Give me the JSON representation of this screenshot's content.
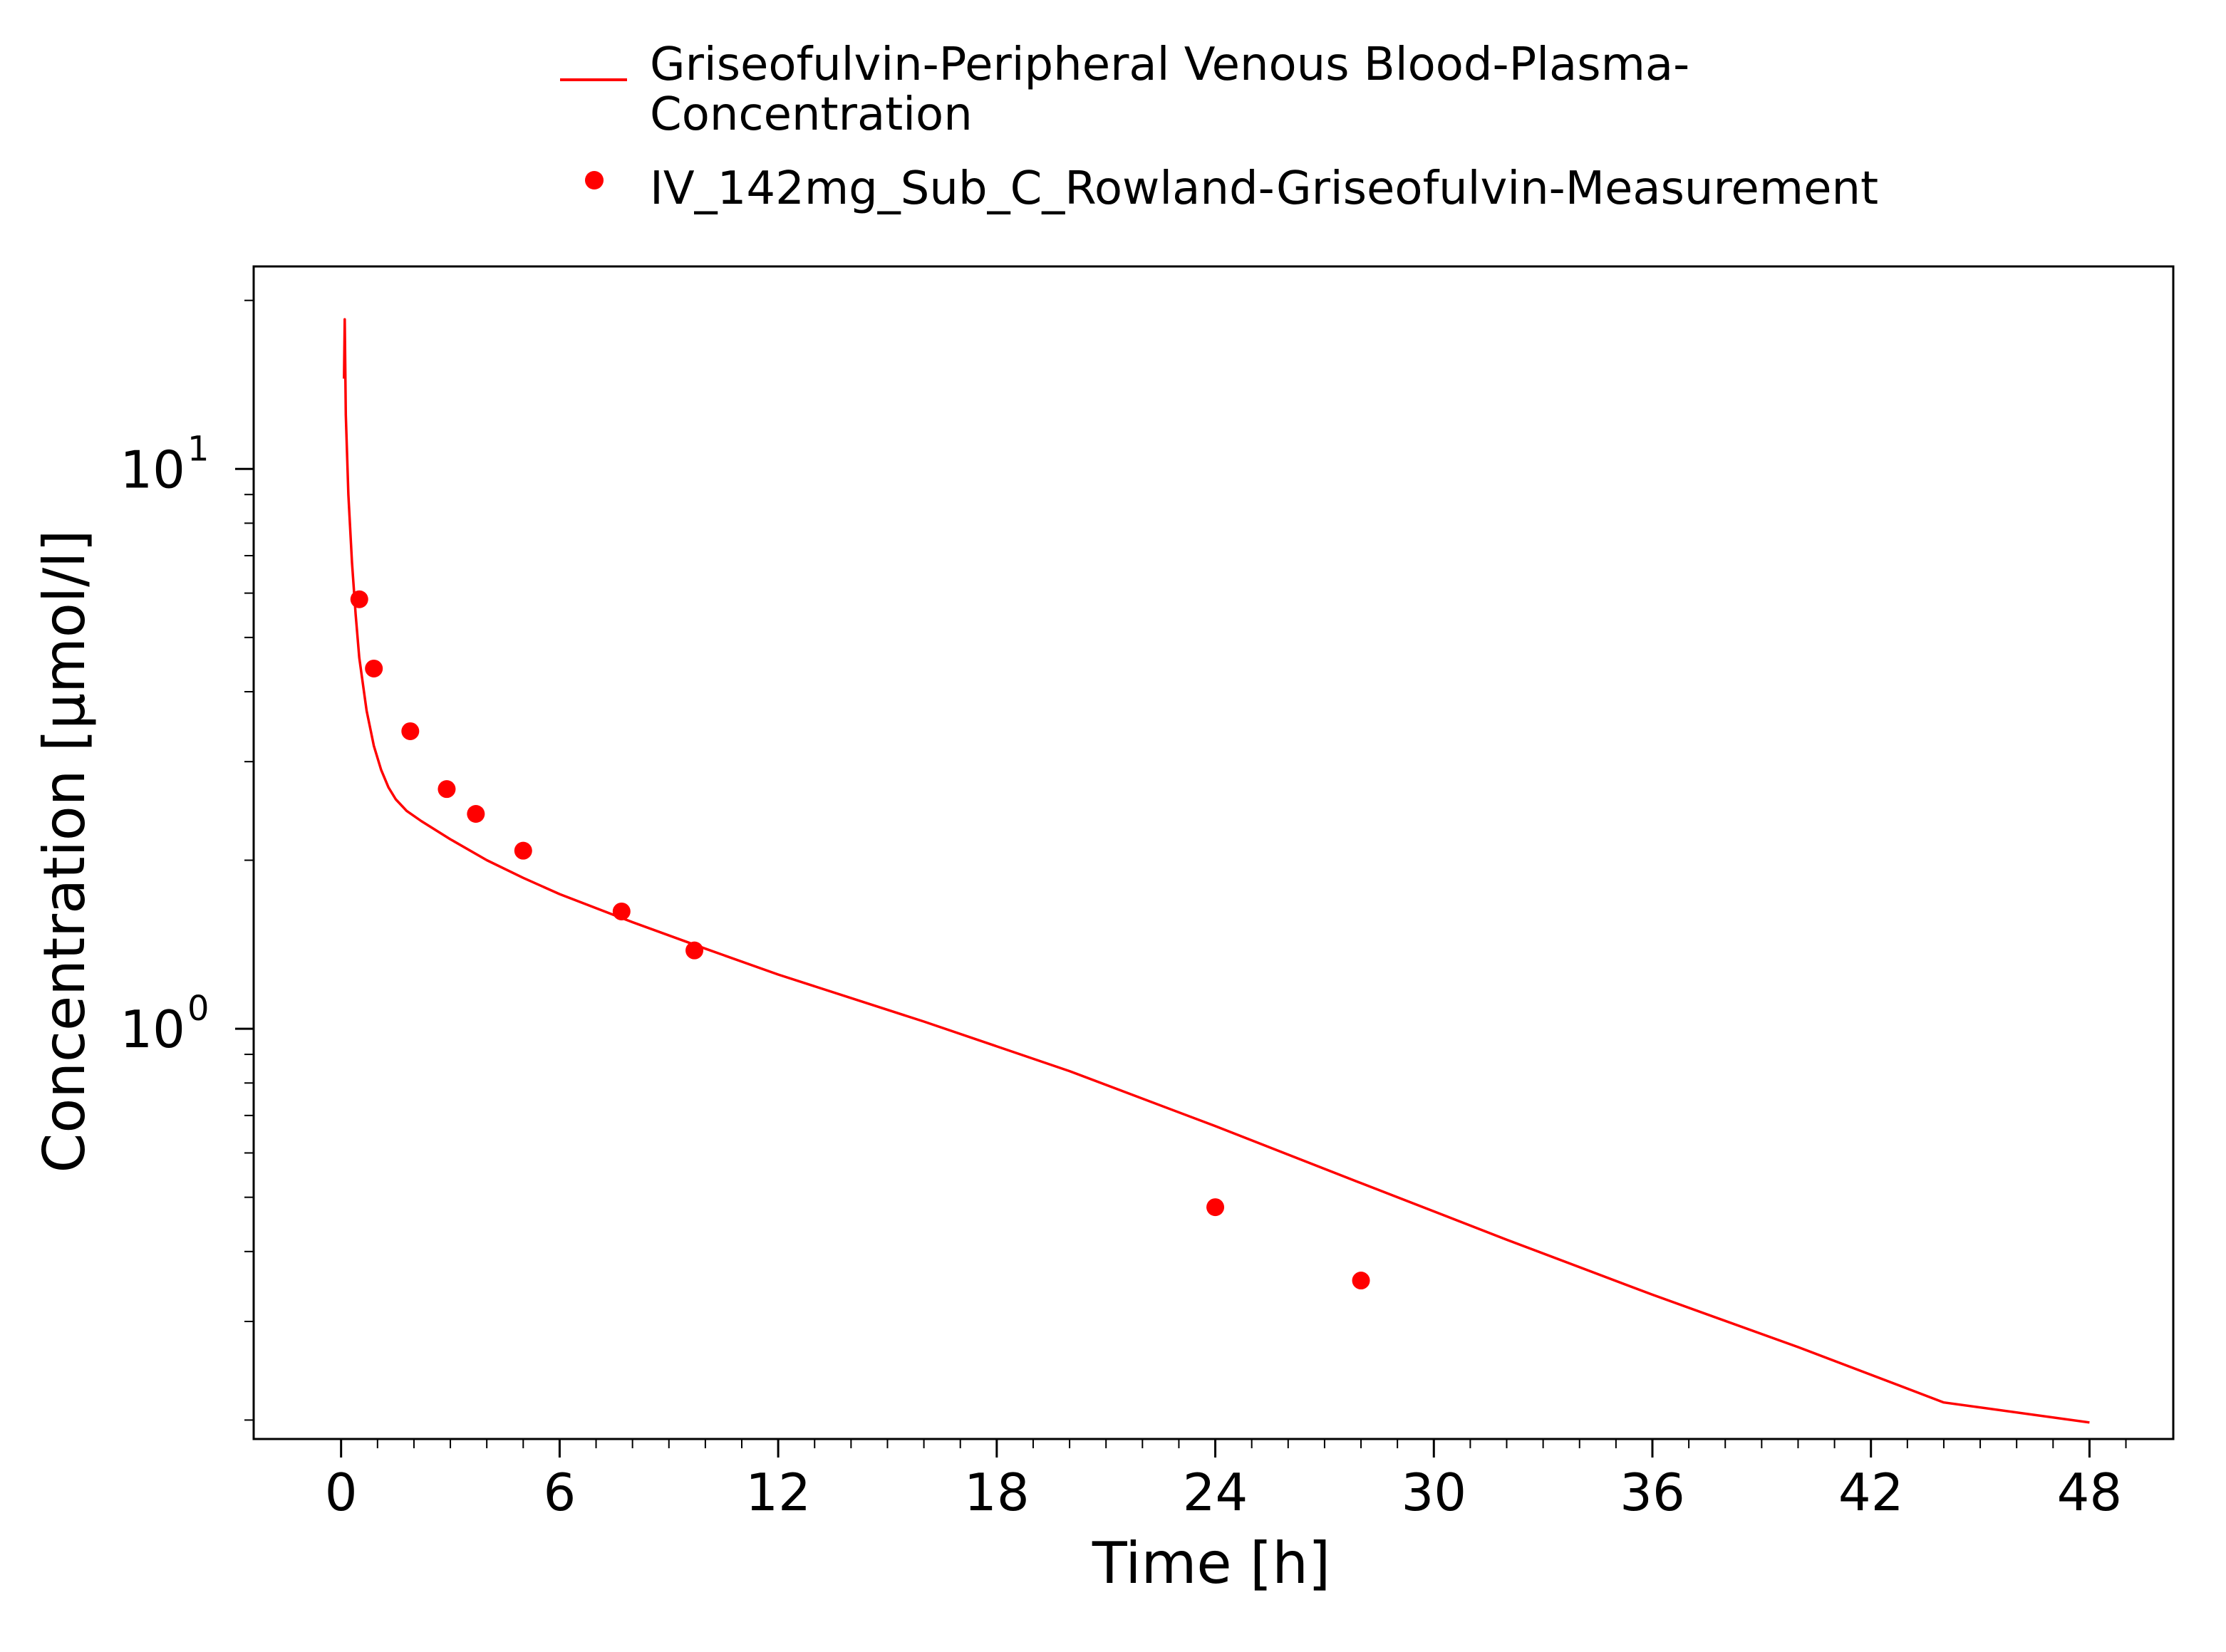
{
  "chart_data": {
    "type": "line",
    "xlabel": "Time [h]",
    "ylabel": "Concentration [µmol/l]",
    "xlim": [
      -2.4,
      50.3
    ],
    "ylim": [
      0.185,
      23.0
    ],
    "yscale": "log",
    "grid": false,
    "legend_position": "top-center",
    "x_ticks": [
      {
        "value": 0,
        "label": "0"
      },
      {
        "value": 6,
        "label": "6"
      },
      {
        "value": 12,
        "label": "12"
      },
      {
        "value": 18,
        "label": "18"
      },
      {
        "value": 24,
        "label": "24"
      },
      {
        "value": 30,
        "label": "30"
      },
      {
        "value": 36,
        "label": "36"
      },
      {
        "value": 42,
        "label": "42"
      },
      {
        "value": 48,
        "label": "48"
      }
    ],
    "y_ticks": [
      {
        "value": 1,
        "base": "10",
        "exp": "0"
      },
      {
        "value": 10,
        "base": "10",
        "exp": "1"
      }
    ],
    "series": [
      {
        "name": "Griseofulvin-Peripheral Venous Blood-Plasma-Concentration",
        "legend_lines": [
          "Griseofulvin-Peripheral Venous Blood-Plasma-",
          "Concentration"
        ],
        "kind": "line",
        "color": "#ff0000",
        "x": [
          0.08,
          0.1,
          0.13,
          0.2,
          0.3,
          0.4,
          0.5,
          0.7,
          0.9,
          1.1,
          1.3,
          1.5,
          1.8,
          2.2,
          3,
          4,
          5,
          6,
          8,
          10,
          12,
          16,
          20,
          24,
          28,
          32,
          36,
          40,
          44,
          48
        ],
        "y": [
          14.5,
          18.5,
          12.5,
          9.0,
          6.8,
          5.5,
          4.6,
          3.7,
          3.2,
          2.9,
          2.7,
          2.57,
          2.45,
          2.35,
          2.18,
          2.0,
          1.86,
          1.74,
          1.55,
          1.39,
          1.25,
          1.03,
          0.84,
          0.67,
          0.53,
          0.42,
          0.335,
          0.27,
          0.215,
          0.198
        ]
      },
      {
        "name": "IV_142mg_Sub_C_Rowland-Griseofulvin-Measurement",
        "kind": "scatter",
        "color": "#ff0000",
        "x": [
          0.5,
          0.9,
          1.9,
          2.9,
          3.7,
          5.0,
          7.7,
          9.7,
          24.0,
          28.0
        ],
        "y": [
          5.85,
          4.4,
          3.4,
          2.68,
          2.42,
          2.08,
          1.62,
          1.38,
          0.48,
          0.355
        ]
      }
    ]
  }
}
